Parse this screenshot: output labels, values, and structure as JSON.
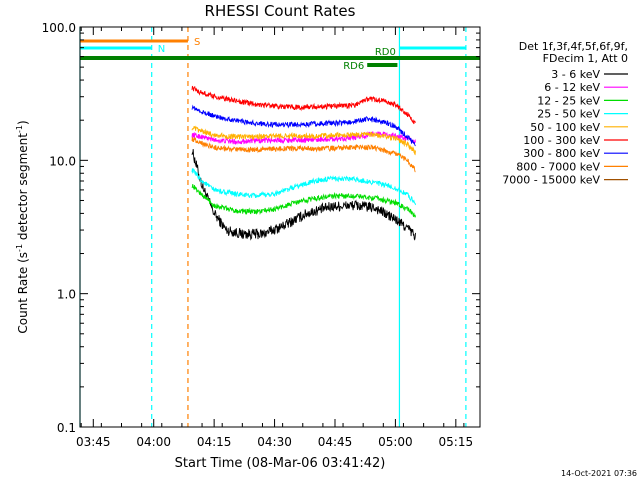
{
  "chart_data": {
    "type": "line",
    "title": "RHESSI Count Rates",
    "xlabel": "Start Time (08-Mar-06 03:41:42)",
    "ylabel_main": "Count Rate (s",
    "ylabel_sup1": "-1",
    "ylabel_mid": " detector segment",
    "ylabel_sup2": "-1",
    "ylabel_end": ")",
    "y_scale": "log",
    "ylim": [
      0.1,
      100
    ],
    "xlim": [
      "03:41:42",
      "05:21:00"
    ],
    "x_tick_labels": [
      "03:45",
      "04:00",
      "04:15",
      "04:30",
      "04:45",
      "05:00",
      "05:15"
    ],
    "y_tick_labels": [
      "0.1",
      "1.0",
      "10.0",
      "100.0"
    ],
    "legend": {
      "placement": "right",
      "header_lines": [
        "Det 1f,3f,4f,5f,6f,9f,",
        "FDecim 1, Att 0"
      ],
      "entries": [
        {
          "label": "3 - 6 keV",
          "color": "#000000"
        },
        {
          "label": "6 - 12 keV",
          "color": "#ff00ff"
        },
        {
          "label": "12 - 25 keV",
          "color": "#00dd00"
        },
        {
          "label": "25 - 50 keV",
          "color": "#00ffff"
        },
        {
          "label": "50 - 100 keV",
          "color": "#ffb000"
        },
        {
          "label": "100 - 300 keV",
          "color": "#ff0000"
        },
        {
          "label": "300 - 800 keV",
          "color": "#0000ff"
        },
        {
          "label": "800 - 7000 keV",
          "color": "#ff8000"
        },
        {
          "label": "7000 - 15000 keV",
          "color": "#a05000"
        }
      ]
    },
    "intervals": [
      {
        "label": "S",
        "color": "#ff8000",
        "start": "03:41:42",
        "end": "04:08:30"
      },
      {
        "label": "N",
        "color": "#00ffff",
        "start": "03:41:42",
        "end": "03:59:30"
      },
      {
        "label": "",
        "color": "#00ffff",
        "start": "05:01:00",
        "end": "05:17:30"
      },
      {
        "label": "RD0",
        "color": "#008000",
        "start": "03:41:42",
        "end": "05:21:00"
      },
      {
        "label": "RD6",
        "color": "#008000",
        "start": "04:53:00",
        "end": "05:00:30"
      }
    ],
    "vertical_lines": [
      {
        "time": "03:41:42",
        "color": "#00ffff",
        "style": "solid"
      },
      {
        "time": "03:59:30",
        "color": "#00ffff",
        "style": "dashed"
      },
      {
        "time": "04:08:30",
        "color": "#ff8000",
        "style": "dashed"
      },
      {
        "time": "05:01:00",
        "color": "#00ffff",
        "style": "solid"
      },
      {
        "time": "05:17:30",
        "color": "#00ffff",
        "style": "dashed"
      }
    ],
    "data_start": "04:09:30",
    "data_end": "05:05:00",
    "series": [
      {
        "name": "3 - 6 keV",
        "color": "#000000",
        "points": [
          [
            "04:09:30",
            12
          ],
          [
            "04:12:00",
            6.5
          ],
          [
            "04:15:00",
            4
          ],
          [
            "04:18:00",
            3
          ],
          [
            "04:22:00",
            2.8
          ],
          [
            "04:27:00",
            2.8
          ],
          [
            "04:32:00",
            3.2
          ],
          [
            "04:38:00",
            4
          ],
          [
            "04:44:00",
            4.5
          ],
          [
            "04:50:00",
            4.6
          ],
          [
            "04:55:00",
            4.4
          ],
          [
            "05:00:00",
            3.6
          ],
          [
            "05:03:00",
            3.1
          ],
          [
            "05:05:00",
            2.7
          ]
        ]
      },
      {
        "name": "6 - 12 keV",
        "color": "#ff00ff",
        "points": [
          [
            "04:09:30",
            15.5
          ],
          [
            "04:12:00",
            15
          ],
          [
            "04:15:00",
            14.2
          ],
          [
            "04:20:00",
            13.8
          ],
          [
            "04:25:00",
            14
          ],
          [
            "04:30:00",
            14.2
          ],
          [
            "04:35:00",
            14.2
          ],
          [
            "04:40:00",
            14.3
          ],
          [
            "04:45:00",
            14.5
          ],
          [
            "04:50:00",
            14.8
          ],
          [
            "04:55:00",
            16
          ],
          [
            "05:00:00",
            15.3
          ],
          [
            "05:03:00",
            14.5
          ],
          [
            "05:05:00",
            13.5
          ]
        ]
      },
      {
        "name": "12 - 25 keV",
        "color": "#00dd00",
        "points": [
          [
            "04:09:30",
            6.5
          ],
          [
            "04:12:00",
            5.5
          ],
          [
            "04:15:00",
            4.6
          ],
          [
            "04:20:00",
            4.2
          ],
          [
            "04:25:00",
            4.1
          ],
          [
            "04:30:00",
            4.3
          ],
          [
            "04:35:00",
            4.8
          ],
          [
            "04:40:00",
            5.2
          ],
          [
            "04:45:00",
            5.4
          ],
          [
            "04:50:00",
            5.4
          ],
          [
            "04:55:00",
            5.2
          ],
          [
            "05:00:00",
            4.8
          ],
          [
            "05:03:00",
            4.3
          ],
          [
            "05:05:00",
            3.8
          ]
        ]
      },
      {
        "name": "25 - 50 keV",
        "color": "#00ffff",
        "points": [
          [
            "04:09:30",
            8.5
          ],
          [
            "04:12:00",
            7
          ],
          [
            "04:15:00",
            6
          ],
          [
            "04:20:00",
            5.6
          ],
          [
            "04:25:00",
            5.4
          ],
          [
            "04:30:00",
            5.6
          ],
          [
            "04:35:00",
            6.3
          ],
          [
            "04:40:00",
            7
          ],
          [
            "04:45:00",
            7.3
          ],
          [
            "04:50:00",
            7.2
          ],
          [
            "04:55:00",
            6.8
          ],
          [
            "05:00:00",
            6.2
          ],
          [
            "05:03:00",
            5.5
          ],
          [
            "05:05:00",
            4.8
          ]
        ]
      },
      {
        "name": "50 - 100 keV",
        "color": "#ffb000",
        "points": [
          [
            "04:09:30",
            17.5
          ],
          [
            "04:12:00",
            16.5
          ],
          [
            "04:15:00",
            15.5
          ],
          [
            "04:20:00",
            15
          ],
          [
            "04:25:00",
            15
          ],
          [
            "04:30:00",
            15.2
          ],
          [
            "04:35:00",
            15.3
          ],
          [
            "04:40:00",
            15.2
          ],
          [
            "04:45:00",
            15.4
          ],
          [
            "04:50:00",
            15.5
          ],
          [
            "04:55:00",
            15.5
          ],
          [
            "05:00:00",
            14.6
          ],
          [
            "05:03:00",
            13.2
          ],
          [
            "05:05:00",
            11.5
          ]
        ]
      },
      {
        "name": "100 - 300 keV",
        "color": "#ff0000",
        "points": [
          [
            "04:09:30",
            35
          ],
          [
            "04:12:00",
            32
          ],
          [
            "04:15:00",
            30
          ],
          [
            "04:20:00",
            28
          ],
          [
            "04:25:00",
            26.5
          ],
          [
            "04:30:00",
            25.5
          ],
          [
            "04:35:00",
            25
          ],
          [
            "04:40:00",
            25.2
          ],
          [
            "04:45:00",
            25.5
          ],
          [
            "04:50:00",
            26
          ],
          [
            "04:53:00",
            29
          ],
          [
            "04:57:00",
            28
          ],
          [
            "05:00:00",
            26
          ],
          [
            "05:03:00",
            22
          ],
          [
            "05:05:00",
            19
          ]
        ]
      },
      {
        "name": "300 - 800 keV",
        "color": "#0000ff",
        "points": [
          [
            "04:09:30",
            25
          ],
          [
            "04:12:00",
            23
          ],
          [
            "04:15:00",
            21.5
          ],
          [
            "04:20:00",
            20
          ],
          [
            "04:25:00",
            19
          ],
          [
            "04:30:00",
            18.5
          ],
          [
            "04:35:00",
            18.5
          ],
          [
            "04:40:00",
            18.8
          ],
          [
            "04:45:00",
            19
          ],
          [
            "04:50:00",
            19.5
          ],
          [
            "04:53:00",
            20.5
          ],
          [
            "04:57:00",
            19.5
          ],
          [
            "05:00:00",
            18
          ],
          [
            "05:03:00",
            15
          ],
          [
            "05:05:00",
            13
          ]
        ]
      },
      {
        "name": "800 - 7000 keV",
        "color": "#ff8000",
        "points": [
          [
            "04:09:30",
            14.5
          ],
          [
            "04:12:00",
            13.5
          ],
          [
            "04:15:00",
            12.5
          ],
          [
            "04:20:00",
            12
          ],
          [
            "04:25:00",
            12
          ],
          [
            "04:30:00",
            12.2
          ],
          [
            "04:35:00",
            12.3
          ],
          [
            "04:40:00",
            12.2
          ],
          [
            "04:45:00",
            12.3
          ],
          [
            "04:50:00",
            12.5
          ],
          [
            "04:55:00",
            12.4
          ],
          [
            "05:00:00",
            11.2
          ],
          [
            "05:03:00",
            10
          ],
          [
            "05:05:00",
            8.5
          ]
        ]
      },
      {
        "name": "7000 - 15000 keV",
        "color": "#a05000",
        "points": []
      }
    ]
  },
  "footer_timestamp": "14-Oct-2021 07:36"
}
